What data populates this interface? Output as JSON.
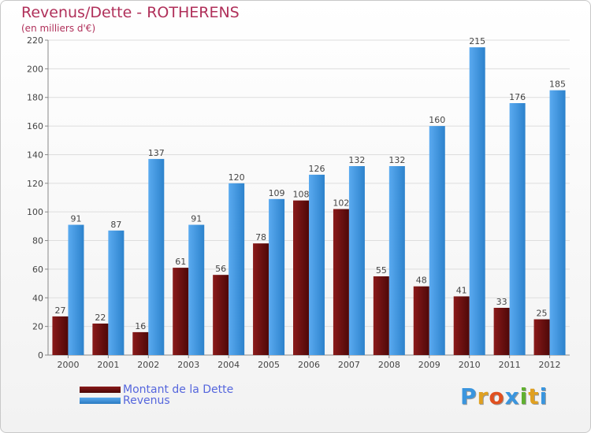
{
  "chart_data": {
    "type": "bar",
    "title": "Revenus/Dette - ROTHERENS",
    "subtitle": "(en milliers d'€)",
    "categories": [
      "2000",
      "2001",
      "2002",
      "2003",
      "2004",
      "2005",
      "2006",
      "2007",
      "2008",
      "2009",
      "2010",
      "2011",
      "2012"
    ],
    "series": [
      {
        "name": "Montant de la Dette",
        "color": "#6e0e0e",
        "values": [
          27,
          22,
          16,
          61,
          56,
          78,
          108,
          102,
          55,
          48,
          41,
          33,
          25
        ]
      },
      {
        "name": "Revenus",
        "color": "#3a95de",
        "values": [
          91,
          87,
          137,
          91,
          120,
          109,
          126,
          132,
          132,
          160,
          215,
          176,
          185
        ]
      }
    ],
    "ylim": [
      0,
      220
    ],
    "yticks": [
      0,
      20,
      40,
      60,
      80,
      100,
      120,
      140,
      160,
      180,
      200,
      220
    ],
    "grid": true,
    "legend": "bottom-left"
  },
  "logo": {
    "letters": [
      "P",
      "r",
      "o",
      "x",
      "i",
      "t",
      "i"
    ],
    "colors": [
      "#3a95de",
      "#e0a020",
      "#e05020",
      "#3a95de",
      "#60b030",
      "#e0a020",
      "#3a95de"
    ]
  }
}
